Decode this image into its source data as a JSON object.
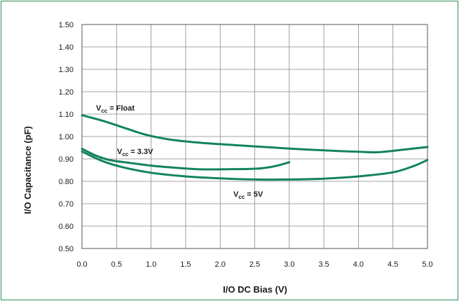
{
  "colors": {
    "frame": "#2e8b57",
    "series": "#12845a",
    "grid": "#888888"
  },
  "chart_data": {
    "type": "line",
    "title": "",
    "xlabel": "I/O DC Bias (V)",
    "ylabel": "I/O Capacitance (pF)",
    "xlim": [
      0.0,
      5.0
    ],
    "ylim": [
      0.5,
      1.5
    ],
    "x_ticks": [
      "0.0",
      "0.5",
      "1.0",
      "1.5",
      "2.0",
      "2.5",
      "3.0",
      "3.5",
      "4.0",
      "4.5",
      "5.0"
    ],
    "y_ticks": [
      "0.50",
      "0.60",
      "0.70",
      "0.80",
      "0.90",
      "1.00",
      "1.10",
      "1.20",
      "1.30",
      "1.40",
      "1.50"
    ],
    "grid": true,
    "legend": "none",
    "series": [
      {
        "annotation": {
          "main": "V",
          "sub": "cc",
          "rest": " = Float"
        },
        "x": [
          0.0,
          0.3,
          0.6,
          0.9,
          1.2,
          1.5,
          1.8,
          2.2,
          2.6,
          3.0,
          3.5,
          4.0,
          4.3,
          4.7,
          5.0
        ],
        "y": [
          1.095,
          1.07,
          1.04,
          1.01,
          0.99,
          0.978,
          0.97,
          0.962,
          0.954,
          0.946,
          0.938,
          0.932,
          0.93,
          0.943,
          0.953
        ]
      },
      {
        "annotation": {
          "main": "V",
          "sub": "cc",
          "rest": " = 3.3V"
        },
        "x": [
          0.0,
          0.2,
          0.4,
          0.7,
          1.0,
          1.3,
          1.6,
          1.8,
          2.1,
          2.4,
          2.6,
          2.8,
          3.0
        ],
        "y": [
          0.945,
          0.915,
          0.895,
          0.882,
          0.87,
          0.862,
          0.855,
          0.853,
          0.854,
          0.855,
          0.858,
          0.868,
          0.885
        ]
      },
      {
        "annotation": {
          "main": "V",
          "sub": "cc",
          "rest": " = 5V"
        },
        "x": [
          0.0,
          0.3,
          0.6,
          1.0,
          1.5,
          2.0,
          2.5,
          3.0,
          3.5,
          4.0,
          4.5,
          4.8,
          5.0
        ],
        "y": [
          0.933,
          0.89,
          0.862,
          0.838,
          0.822,
          0.813,
          0.808,
          0.808,
          0.812,
          0.822,
          0.84,
          0.868,
          0.895
        ]
      }
    ]
  }
}
